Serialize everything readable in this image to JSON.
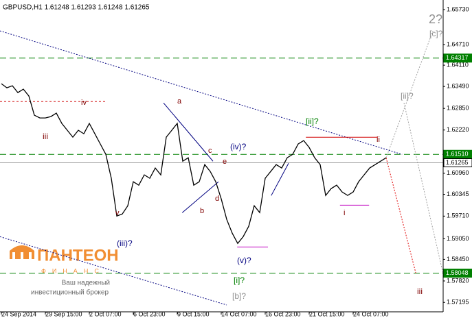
{
  "chart_data": {
    "type": "line",
    "title": "GBPUSD,H1  1.61248  1.61293  1.61248  1.61265",
    "xlim": [
      0,
      80.375
    ],
    "ylim": [
      1.5692,
      1.6601
    ],
    "xticks": [
      {
        "value": 0,
        "label": "24 Sep 2014"
      },
      {
        "value": 8,
        "label": "29 Sep 15:00"
      },
      {
        "value": 16,
        "label": "2 Oct 07:00"
      },
      {
        "value": 24,
        "label": "6 Oct 23:00"
      },
      {
        "value": 32,
        "label": "9 Oct 15:00"
      },
      {
        "value": 40,
        "label": "14 Oct 07:00"
      },
      {
        "value": 48,
        "label": "16 Oct 23:00"
      },
      {
        "value": 56,
        "label": "21 Oct 15:00"
      },
      {
        "value": 64,
        "label": "24 Oct 07:00"
      }
    ],
    "yticks": [
      {
        "value": 1.6573,
        "label": "1.65730"
      },
      {
        "value": 1.6471,
        "label": "1.64710"
      },
      {
        "value": 1.6411,
        "label": "1.64110"
      },
      {
        "value": 1.6349,
        "label": "1.63490"
      },
      {
        "value": 1.6285,
        "label": "1.62850"
      },
      {
        "value": 1.6222,
        "label": "1.62220"
      },
      {
        "value": 1.6096,
        "label": "1.60960"
      },
      {
        "value": 1.60345,
        "label": "1.60345"
      },
      {
        "value": 1.5971,
        "label": "1.59710"
      },
      {
        "value": 1.5905,
        "label": "1.59050"
      },
      {
        "value": 1.5845,
        "label": "1.58450"
      },
      {
        "value": 1.5782,
        "label": "1.57820"
      },
      {
        "value": 1.57195,
        "label": "1.57195"
      }
    ],
    "series": [
      {
        "name": "GBPUSD",
        "color": "#000000",
        "values": [
          1.63571,
          1.63451,
          1.63511,
          1.63311,
          1.63411,
          1.63211,
          1.62652,
          1.62572,
          1.62572,
          1.62612,
          1.62712,
          1.62412,
          1.62212,
          1.62012,
          1.62212,
          1.62112,
          1.62412,
          1.62112,
          1.61812,
          1.61512,
          1.60813,
          1.59713,
          1.59773,
          1.60013,
          1.60713,
          1.60613,
          1.60913,
          1.60813,
          1.61112,
          1.60913,
          1.62012,
          1.62212,
          1.62412,
          1.61312,
          1.61412,
          1.60613,
          1.60713,
          1.61212,
          1.61012,
          1.60713,
          1.60213,
          1.59613,
          1.59213,
          1.58914,
          1.59113,
          1.59413,
          1.60013,
          1.59813,
          1.60813,
          1.61012,
          1.61212,
          1.61112,
          1.61412,
          1.61512,
          1.61812,
          1.61912,
          1.61712,
          1.61412,
          1.61212,
          1.60313,
          1.60513,
          1.60613,
          1.60413,
          1.60313,
          1.60413,
          1.60713,
          1.60913,
          1.61112,
          1.61212,
          1.61312,
          1.61412
        ]
      }
    ],
    "levels": [
      {
        "value": 1.64317,
        "label": "1.64317",
        "color": "#008000"
      },
      {
        "value": 1.6151,
        "label": "1.61510",
        "color": "#008000"
      },
      {
        "value": 1.58048,
        "label": "1.58048",
        "color": "#008000"
      },
      {
        "value": 1.61265,
        "label": "1.61265",
        "color": "#a0a0a0"
      }
    ],
    "lines": [
      {
        "color": "#000080",
        "dash": "2,2",
        "x": [
          -0.25,
          72.9
        ],
        "y": [
          1.6511,
          1.6151
        ]
      },
      {
        "color": "#000080",
        "dash": "2,2",
        "x": [
          -0.25,
          41
        ],
        "y": [
          1.5911,
          1.5712
        ]
      },
      {
        "color": "#000080",
        "dash": "",
        "x": [
          29.5,
          38.5
        ],
        "y": [
          1.6301,
          1.6131
        ]
      },
      {
        "color": "#000080",
        "dash": "",
        "x": [
          32.9,
          39.5
        ],
        "y": [
          1.5981,
          1.6071
        ]
      },
      {
        "color": "#000080",
        "dash": "",
        "x": [
          49.1,
          52.25
        ],
        "y": [
          1.6031,
          1.6125
        ]
      },
      {
        "color": "#d00000",
        "dash": "3,3",
        "x": [
          -0.25,
          19.1
        ],
        "y": [
          1.6305,
          1.6305
        ]
      },
      {
        "color": "#d00000",
        "dash": "",
        "x": [
          55.4,
          68.5
        ],
        "y": [
          1.6201,
          1.6201
        ]
      },
      {
        "color": "#c000c0",
        "dash": "",
        "x": [
          42.9,
          48.5
        ],
        "y": [
          1.5881,
          1.5881
        ]
      },
      {
        "color": "#c000c0",
        "dash": "",
        "x": [
          61.6,
          66.9
        ],
        "y": [
          1.6003,
          1.6003
        ]
      },
      {
        "color": "#a0a0a0",
        "dash": "2,2",
        "x": [
          70,
          78.5
        ],
        "y": [
          1.6141,
          1.6511
        ]
      },
      {
        "color": "#a0a0a0",
        "dash": "2,2",
        "x": [
          73.25,
          80.4
        ],
        "y": [
          1.6301,
          1.5801
        ]
      },
      {
        "color": "#e00000",
        "dash": "2,2",
        "x": [
          70,
          75.4
        ],
        "y": [
          1.6141,
          1.5805
        ]
      }
    ],
    "annotations": [
      {
        "text": "iv",
        "color": "#800000"
      },
      {
        "text": "iii",
        "color": "#800000"
      },
      {
        "text": "a",
        "color": "#800000"
      },
      {
        "text": "b",
        "color": "#800000"
      },
      {
        "text": "c",
        "color": "#800000"
      },
      {
        "text": "d",
        "color": "#800000"
      },
      {
        "text": "e",
        "color": "#800000"
      },
      {
        "text": "(iv)?",
        "color": "#000080"
      },
      {
        "text": "v",
        "color": "#800000"
      },
      {
        "text": "(iii)?",
        "color": "#000080"
      },
      {
        "text": "(v)?",
        "color": "#000080"
      },
      {
        "text": "[i]?",
        "color": "#008000"
      },
      {
        "text": "[b]?",
        "color": "#909090"
      },
      {
        "text": "[ii]?",
        "color": "#008000"
      },
      {
        "text": "ii",
        "color": "#800000"
      },
      {
        "text": "i",
        "color": "#800000"
      },
      {
        "text": "[ii]?",
        "color": "#909090"
      },
      {
        "text": "[c]?",
        "color": "#909090"
      },
      {
        "text": "2?",
        "color": "#909090"
      },
      {
        "text": "iii",
        "color": "#800000"
      }
    ]
  },
  "watermark": {
    "brand": "ПАНТЕОН",
    "sub": "ФИНАНС",
    "line1": "Ваш надежный",
    "line2": "инвестиционный брокер"
  }
}
